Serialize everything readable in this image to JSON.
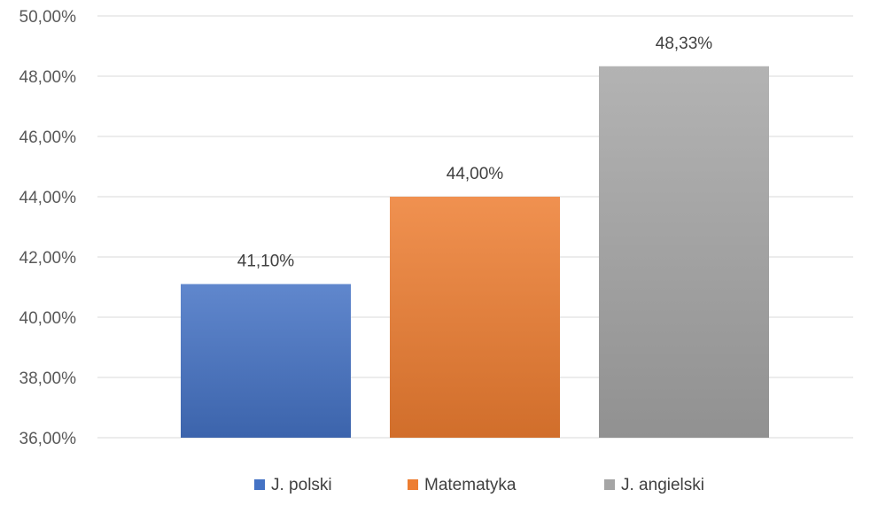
{
  "chart_data": {
    "type": "bar",
    "title": "",
    "xlabel": "",
    "ylabel": "",
    "ylim": [
      36,
      50
    ],
    "y_ticks": [
      "36,00%",
      "38,00%",
      "40,00%",
      "42,00%",
      "44,00%",
      "46,00%",
      "48,00%",
      "50,00%"
    ],
    "grid": true,
    "legend_position": "bottom",
    "series": [
      {
        "name": "J. polski",
        "value": 41.1,
        "label": "41,10%",
        "color": "#4472C4"
      },
      {
        "name": "Matematyka",
        "value": 44.0,
        "label": "44,00%",
        "color": "#ED7D31"
      },
      {
        "name": "J. angielski",
        "value": 48.33,
        "label": "48,33%",
        "color": "#A5A5A5"
      }
    ]
  }
}
